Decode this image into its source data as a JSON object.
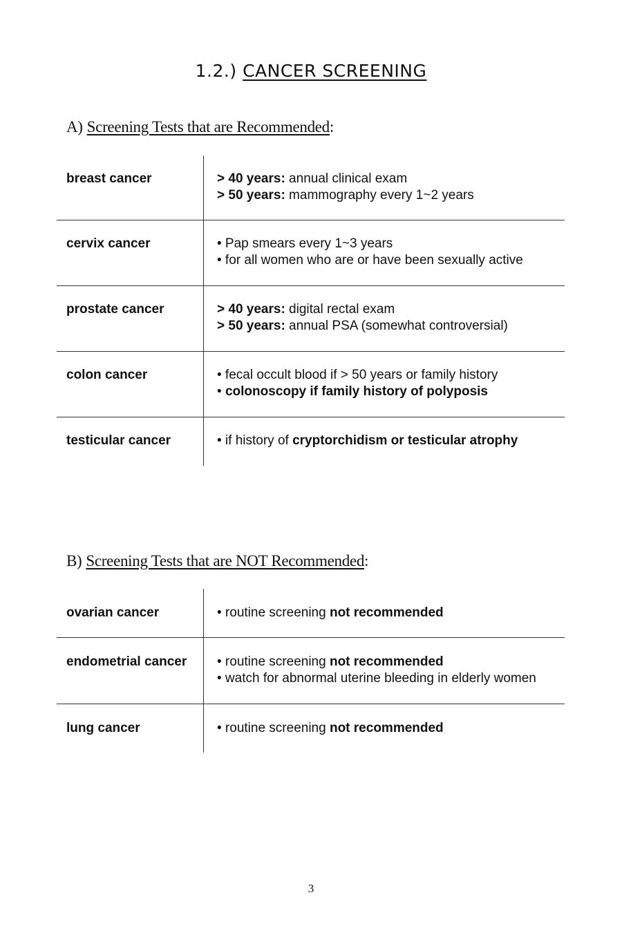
{
  "title": {
    "number": "1.2.)",
    "text": "CANCER SCREENING"
  },
  "section_a": {
    "label": "A)",
    "heading": "Screening Tests that are Recommended",
    "colon": ":",
    "rows": [
      {
        "name": "breast cancer",
        "lines": [
          [
            {
              "t": "> 40 years:",
              "b": true
            },
            {
              "t": " annual clinical exam",
              "b": false
            }
          ],
          [
            {
              "t": "> 50 years:",
              "b": true
            },
            {
              "t": " mammography every 1~2 years",
              "b": false
            }
          ]
        ]
      },
      {
        "name": "cervix cancer",
        "lines": [
          [
            {
              "t": "• Pap smears every 1~3 years",
              "b": false
            }
          ],
          [
            {
              "t": "• for all women who are or have been sexually active",
              "b": false
            }
          ]
        ]
      },
      {
        "name": "prostate cancer",
        "lines": [
          [
            {
              "t": "> 40 years:",
              "b": true
            },
            {
              "t": " digital rectal exam",
              "b": false
            }
          ],
          [
            {
              "t": "> 50 years:",
              "b": true
            },
            {
              "t": " annual PSA (somewhat controversial)",
              "b": false
            }
          ]
        ]
      },
      {
        "name": "colon cancer",
        "lines": [
          [
            {
              "t": "• fecal occult blood if > 50 years or family history",
              "b": false
            }
          ],
          [
            {
              "t": "• ",
              "b": false
            },
            {
              "t": "colonoscopy if family history of polyposis",
              "b": true
            }
          ]
        ]
      },
      {
        "name": "testicular cancer",
        "lines": [
          [
            {
              "t": "• if history of ",
              "b": false
            },
            {
              "t": "cryptorchidism or testicular atrophy",
              "b": true
            }
          ]
        ]
      }
    ]
  },
  "section_b": {
    "label": "B)",
    "heading": "Screening Tests that are NOT Recommended",
    "colon": ":",
    "rows": [
      {
        "name": "ovarian cancer",
        "lines": [
          [
            {
              "t": "• routine screening ",
              "b": false
            },
            {
              "t": "not recommended",
              "b": true
            }
          ]
        ]
      },
      {
        "name": "endometrial cancer",
        "lines": [
          [
            {
              "t": "• routine screening ",
              "b": false
            },
            {
              "t": "not recommended",
              "b": true
            }
          ],
          [
            {
              "t": "• watch for abnormal uterine bleeding in elderly women",
              "b": false
            }
          ]
        ]
      },
      {
        "name": "lung cancer",
        "lines": [
          [
            {
              "t": "• routine screening ",
              "b": false
            },
            {
              "t": "not recommended",
              "b": true
            }
          ]
        ]
      }
    ]
  },
  "page_number": "3"
}
